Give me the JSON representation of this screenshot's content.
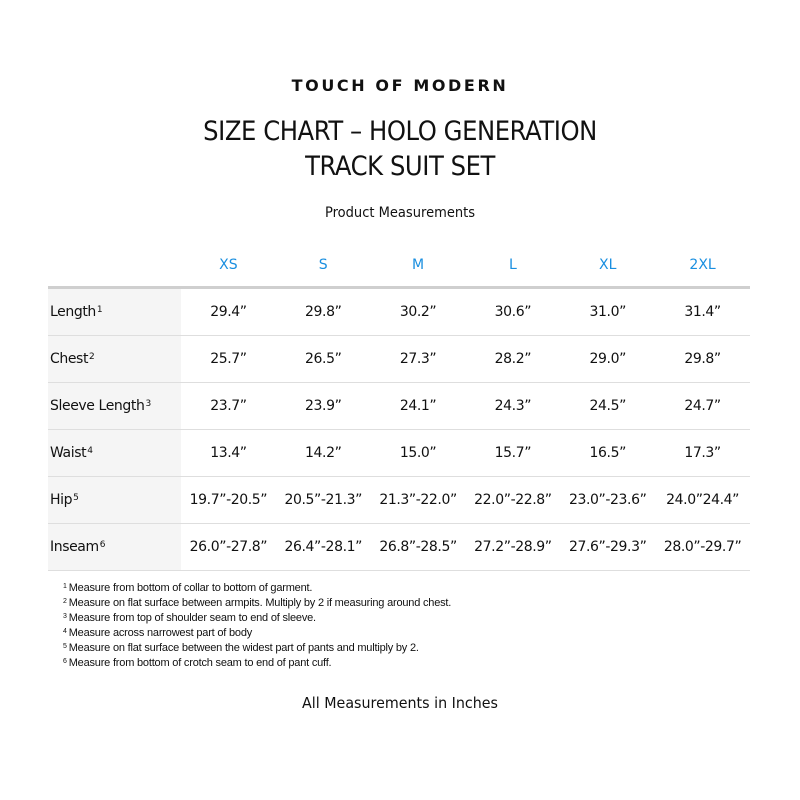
{
  "brand": "TOUCH OF MODERN",
  "title_line1": "SIZE CHART – HOLO GENERATION",
  "title_line2": "TRACK SUIT SET",
  "subtitle": "Product Measurements",
  "accent_color": "#1a8fe0",
  "table": {
    "sizes": [
      "XS",
      "S",
      "M",
      "L",
      "XL",
      "2XL"
    ],
    "rows": [
      {
        "label": "Length",
        "note": "1",
        "values": [
          "29.4”",
          "29.8”",
          "30.2”",
          "30.6”",
          "31.0”",
          "31.4”"
        ]
      },
      {
        "label": "Chest",
        "note": "2",
        "values": [
          "25.7”",
          "26.5”",
          "27.3”",
          "28.2”",
          "29.0”",
          "29.8”"
        ]
      },
      {
        "label": "Sleeve Length",
        "note": "3",
        "values": [
          "23.7”",
          "23.9”",
          "24.1”",
          "24.3”",
          "24.5”",
          "24.7”"
        ]
      },
      {
        "label": "Waist",
        "note": "4",
        "values": [
          "13.4”",
          "14.2”",
          "15.0”",
          "15.7”",
          "16.5”",
          "17.3”"
        ]
      },
      {
        "label": "Hip",
        "note": "5",
        "values": [
          "19.7”-20.5”",
          "20.5”-21.3”",
          "21.3”-22.0”",
          "22.0”-22.8”",
          "23.0”-23.6”",
          "24.0”24.4”"
        ]
      },
      {
        "label": "Inseam",
        "note": "6",
        "values": [
          "26.0”-27.8”",
          "26.4”-28.1”",
          "26.8”-28.5”",
          "27.2”-28.9”",
          "27.6”-29.3”",
          "28.0”-29.7”"
        ]
      }
    ]
  },
  "footnotes": [
    {
      "num": "1",
      "text": "Measure from bottom of collar to bottom of garment."
    },
    {
      "num": "2",
      "text": "Measure on flat surface between armpits. Multiply by 2 if measuring around chest."
    },
    {
      "num": "3",
      "text": "Measure from top of shoulder seam to end of sleeve."
    },
    {
      "num": "4",
      "text": "Measure across narrowest part of body"
    },
    {
      "num": "5",
      "text": "Measure on flat surface between the widest part of pants and multiply by 2."
    },
    {
      "num": "6",
      "text": "Measure from bottom of crotch seam to end of pant cuff."
    }
  ],
  "footer": "All Measurements in Inches"
}
